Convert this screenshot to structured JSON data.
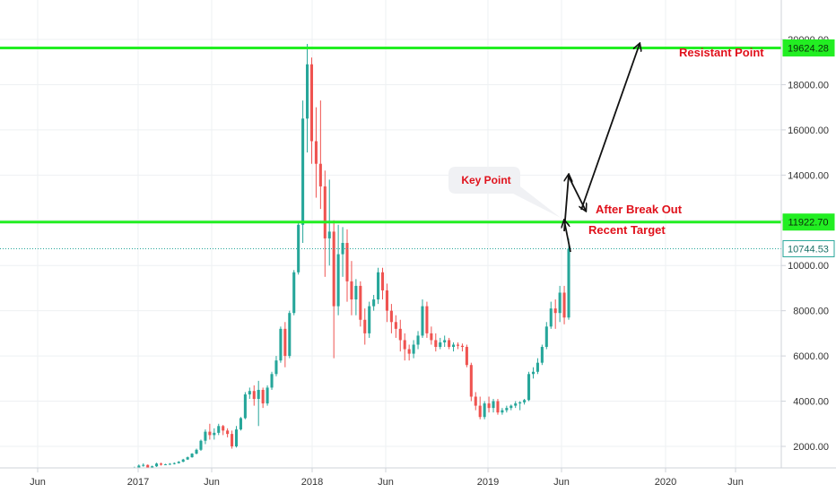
{
  "colors": {
    "up": "#26a69a",
    "down": "#ef5350",
    "level_line": "#22ee22",
    "current_line": "#26a69a",
    "annotation": "#e0111b",
    "arrow": "#111111",
    "grid": "#eef0f3",
    "axis_text": "#333333"
  },
  "chart_data": {
    "type": "candlestick",
    "timeframe": "weekly",
    "x_ticks": [
      "Jun",
      "2017",
      "Jun",
      "2018",
      "Jun",
      "2019",
      "Jun",
      "2020",
      "Jun"
    ],
    "y_ticks": [
      "2000.00",
      "4000.00",
      "6000.00",
      "8000.00",
      "10000.00",
      "12000.00",
      "14000.00",
      "16000.00",
      "18000.00",
      "20000.00"
    ],
    "ylim": [
      1100,
      21000
    ],
    "price_levels": [
      {
        "label": "19624.28",
        "value": 19624.28
      },
      {
        "label": "11922.70",
        "value": 11922.7
      },
      {
        "label": "10744.53",
        "value": 10744.53
      }
    ],
    "annotations": {
      "resistant": "Resistant Point",
      "key": "Key Point",
      "after_break": "After Break Out",
      "recent_target": "Recent Target"
    },
    "candles": [
      [
        900,
        950,
        860,
        920
      ],
      [
        920,
        1000,
        900,
        980
      ],
      [
        980,
        1100,
        950,
        1050
      ],
      [
        1050,
        1200,
        1000,
        1150
      ],
      [
        1150,
        1250,
        1100,
        1180
      ],
      [
        1180,
        1200,
        900,
        1000
      ],
      [
        1000,
        1150,
        950,
        1120
      ],
      [
        1120,
        1280,
        1090,
        1240
      ],
      [
        1240,
        1280,
        1150,
        1190
      ],
      [
        1190,
        1230,
        1170,
        1210
      ],
      [
        1210,
        1260,
        1180,
        1230
      ],
      [
        1230,
        1290,
        1200,
        1260
      ],
      [
        1260,
        1350,
        1240,
        1320
      ],
      [
        1320,
        1450,
        1300,
        1420
      ],
      [
        1420,
        1550,
        1400,
        1520
      ],
      [
        1520,
        1700,
        1500,
        1680
      ],
      [
        1680,
        1900,
        1650,
        1850
      ],
      [
        1850,
        2300,
        1800,
        2250
      ],
      [
        2250,
        2750,
        2100,
        2650
      ],
      [
        2650,
        3000,
        2300,
        2500
      ],
      [
        2500,
        2800,
        2300,
        2600
      ],
      [
        2600,
        3000,
        2500,
        2900
      ],
      [
        2900,
        2950,
        2500,
        2700
      ],
      [
        2700,
        2800,
        2400,
        2550
      ],
      [
        2550,
        2700,
        1900,
        2000
      ],
      [
        2000,
        2900,
        1950,
        2750
      ],
      [
        2750,
        3300,
        2700,
        3250
      ],
      [
        3250,
        4400,
        3200,
        4300
      ],
      [
        4300,
        4600,
        4100,
        4450
      ],
      [
        4450,
        4700,
        3800,
        4100
      ],
      [
        4100,
        4900,
        2900,
        4500
      ],
      [
        4500,
        4600,
        3700,
        3900
      ],
      [
        3900,
        4700,
        3800,
        4600
      ],
      [
        4600,
        5300,
        4500,
        5200
      ],
      [
        5200,
        6000,
        5100,
        5800
      ],
      [
        5800,
        7300,
        5700,
        7200
      ],
      [
        7200,
        7500,
        5500,
        6000
      ],
      [
        6000,
        8000,
        5900,
        7900
      ],
      [
        7900,
        9800,
        7800,
        9700
      ],
      [
        9700,
        11900,
        9600,
        11800
      ],
      [
        11800,
        17300,
        11000,
        16500
      ],
      [
        16500,
        19800,
        15000,
        18900
      ],
      [
        18900,
        19200,
        14500,
        15500
      ],
      [
        15500,
        17000,
        13000,
        14500
      ],
      [
        14500,
        17300,
        12500,
        13500
      ],
      [
        13500,
        14200,
        9500,
        11200
      ],
      [
        11200,
        13800,
        10000,
        11500
      ],
      [
        11500,
        12000,
        5900,
        8200
      ],
      [
        8200,
        11800,
        7800,
        10500
      ],
      [
        10500,
        11700,
        9500,
        11000
      ],
      [
        11000,
        11600,
        8400,
        9300
      ],
      [
        9300,
        10200,
        7800,
        8500
      ],
      [
        8500,
        9400,
        7800,
        9100
      ],
      [
        9100,
        9300,
        7300,
        7600
      ],
      [
        7600,
        8100,
        6500,
        7000
      ],
      [
        7000,
        8400,
        6800,
        8200
      ],
      [
        8200,
        8700,
        8000,
        8500
      ],
      [
        8500,
        9900,
        8300,
        9700
      ],
      [
        9700,
        9900,
        8500,
        8900
      ],
      [
        8900,
        9200,
        7500,
        8000
      ],
      [
        8000,
        8300,
        7000,
        7500
      ],
      [
        7500,
        7800,
        6800,
        7200
      ],
      [
        7200,
        7600,
        6200,
        6700
      ],
      [
        6700,
        7000,
        5800,
        6300
      ],
      [
        6300,
        6500,
        5800,
        6100
      ],
      [
        6100,
        6700,
        5900,
        6500
      ],
      [
        6500,
        7100,
        6300,
        6900
      ],
      [
        6900,
        8500,
        6800,
        8200
      ],
      [
        8200,
        8400,
        6800,
        7000
      ],
      [
        7000,
        7300,
        6500,
        6700
      ],
      [
        6700,
        7000,
        6200,
        6400
      ],
      [
        6400,
        6800,
        6300,
        6600
      ],
      [
        6600,
        6900,
        6400,
        6700
      ],
      [
        6700,
        6800,
        6300,
        6400
      ],
      [
        6400,
        6600,
        6200,
        6500
      ],
      [
        6500,
        6600,
        6300,
        6450
      ],
      [
        6450,
        6550,
        6200,
        6400
      ],
      [
        6400,
        6500,
        5500,
        5600
      ],
      [
        5600,
        5700,
        4000,
        4200
      ],
      [
        4200,
        4400,
        3600,
        3800
      ],
      [
        3800,
        4200,
        3200,
        3300
      ],
      [
        3300,
        4000,
        3200,
        3900
      ],
      [
        3900,
        4200,
        3500,
        3700
      ],
      [
        3700,
        4100,
        3500,
        4000
      ],
      [
        4000,
        4100,
        3400,
        3500
      ],
      [
        3500,
        3700,
        3400,
        3600
      ],
      [
        3600,
        3800,
        3500,
        3700
      ],
      [
        3700,
        3850,
        3600,
        3800
      ],
      [
        3800,
        4000,
        3700,
        3900
      ],
      [
        3900,
        4000,
        3600,
        3950
      ],
      [
        3950,
        4100,
        3850,
        4050
      ],
      [
        4050,
        5300,
        4000,
        5200
      ],
      [
        5200,
        5500,
        5000,
        5300
      ],
      [
        5300,
        5900,
        5200,
        5700
      ],
      [
        5700,
        6500,
        5600,
        6400
      ],
      [
        6400,
        7500,
        6300,
        7300
      ],
      [
        7300,
        8400,
        7200,
        8100
      ],
      [
        8100,
        8500,
        7200,
        7900
      ],
      [
        7900,
        9100,
        7500,
        8800
      ],
      [
        8800,
        9100,
        7400,
        7700
      ],
      [
        7700,
        11200,
        7600,
        10744
      ]
    ]
  }
}
